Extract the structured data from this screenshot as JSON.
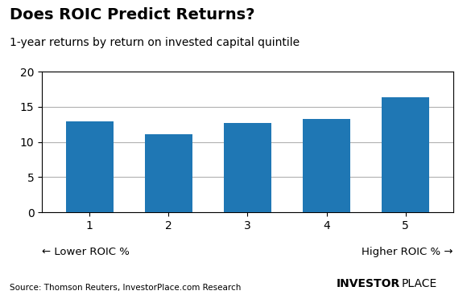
{
  "chart_data": {
    "type": "bar",
    "title": "Does ROIC Predict Returns?",
    "subtitle": "1-year returns by return on invested capital quintile",
    "categories": [
      "1",
      "2",
      "3",
      "4",
      "5"
    ],
    "values": [
      12.9,
      11.1,
      12.7,
      13.3,
      16.4
    ],
    "ylim": [
      0,
      20
    ],
    "yticks": [
      0,
      5,
      10,
      15,
      20
    ],
    "grid": true,
    "annotations": [
      "← Lower ROIC %",
      "Higher ROIC % →",
      "Source: Thomson Reuters, InvestorPlace.com Research",
      "INVESTOR",
      "PLACE"
    ]
  }
}
